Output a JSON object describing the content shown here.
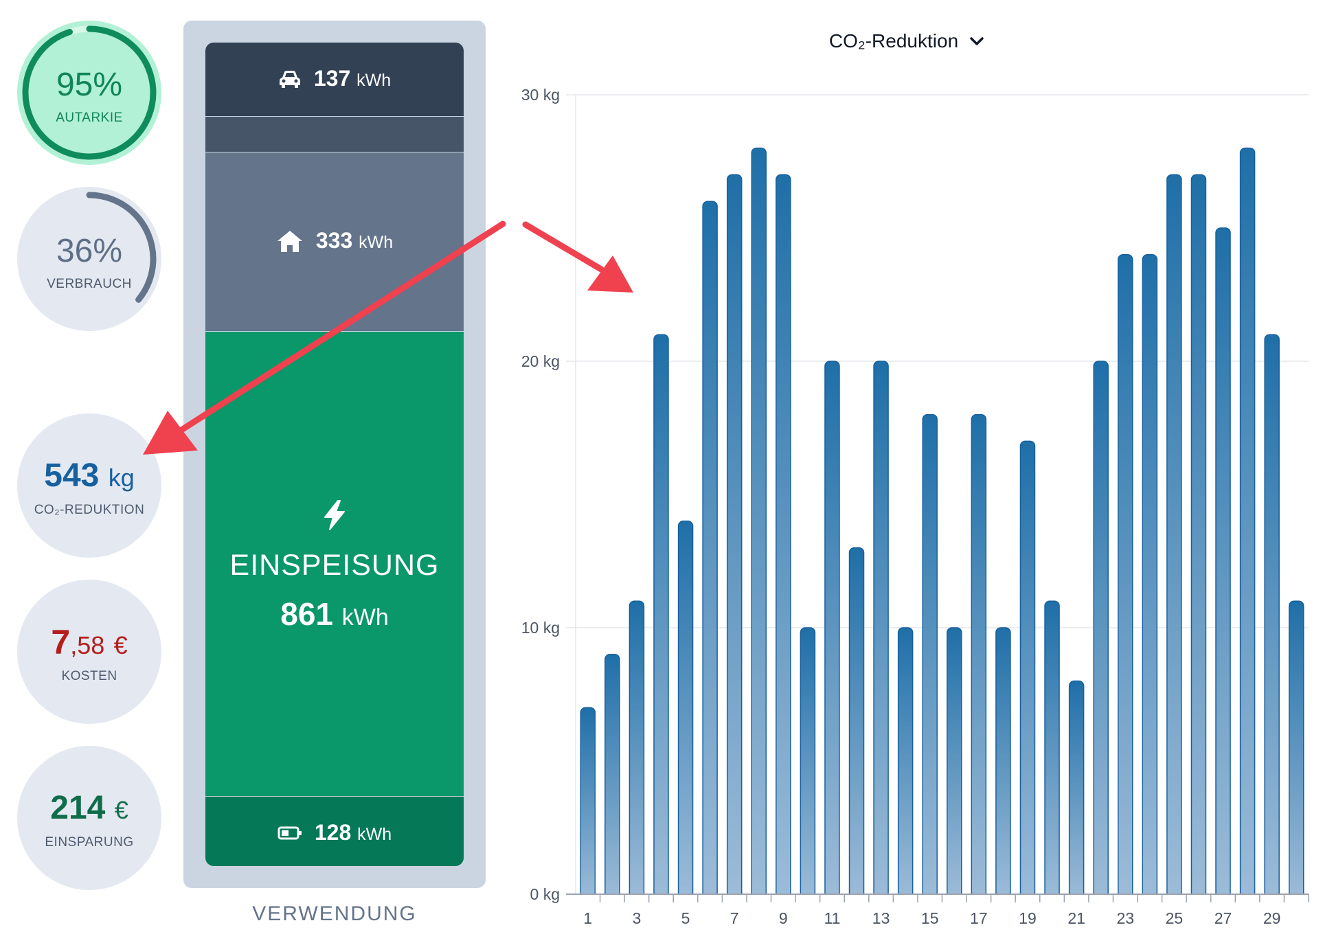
{
  "stats": {
    "autarkie": {
      "value": "95%",
      "label": "AUTARKIE",
      "percent": 95,
      "color": "#10845a"
    },
    "verbrauch": {
      "value": "36%",
      "label": "VERBRAUCH",
      "percent": 36,
      "color": "#64748b"
    },
    "co2": {
      "value": "543",
      "unit": "kg",
      "label": "CO₂-REDUKTION"
    },
    "kosten": {
      "value_int": "7",
      "value_dec": ",58",
      "unit": "€",
      "label": "KOSTEN"
    },
    "einsparung": {
      "value": "214",
      "unit": "€",
      "label": "EINSPARUNG"
    }
  },
  "usage": {
    "car": {
      "value": "137",
      "unit": "kWh",
      "icon": "car-icon"
    },
    "home": {
      "value": "333",
      "unit": "kWh",
      "icon": "house-icon"
    },
    "feed_in": {
      "title": "EINSPEISUNG",
      "value": "861",
      "unit": "kWh",
      "icon": "lightning-icon"
    },
    "battery": {
      "value": "128",
      "unit": "kWh",
      "icon": "battery-icon"
    },
    "caption": "VERWENDUNG",
    "colors": {
      "car": "#334155",
      "home": "#64748b",
      "feed_in": "#0a9769",
      "battery": "#047857"
    }
  },
  "chart": {
    "selector_label": "CO₂-Reduktion",
    "selector_icon": "chevron-down-icon"
  },
  "chart_data": {
    "type": "bar",
    "categories": [
      1,
      2,
      3,
      4,
      5,
      6,
      7,
      8,
      9,
      10,
      11,
      12,
      13,
      14,
      15,
      16,
      17,
      18,
      19,
      20,
      21,
      22,
      23,
      24,
      25,
      26,
      27,
      28,
      29,
      30
    ],
    "x_tick_labels": [
      "1",
      "3",
      "5",
      "7",
      "9",
      "11",
      "13",
      "15",
      "17",
      "19",
      "21",
      "23",
      "25",
      "27",
      "29"
    ],
    "values": [
      7,
      9,
      11,
      21,
      14,
      26,
      27,
      28,
      27,
      10,
      20,
      13,
      20,
      10,
      18,
      10,
      18,
      10,
      17,
      11,
      8,
      20,
      24,
      24,
      27,
      27,
      25,
      28,
      21,
      11
    ],
    "y_ticks": [
      "0 kg",
      "10 kg",
      "20 kg",
      "30 kg"
    ],
    "ylim": [
      0,
      30
    ],
    "grid": true,
    "bar_color": "#1f6fa8"
  },
  "annotations": {
    "arrow_color": "#f0414f"
  }
}
